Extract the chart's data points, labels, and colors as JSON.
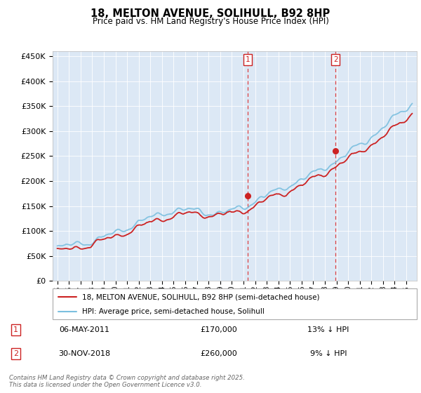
{
  "title_line1": "18, MELTON AVENUE, SOLIHULL, B92 8HP",
  "title_line2": "Price paid vs. HM Land Registry's House Price Index (HPI)",
  "ylim": [
    0,
    460000
  ],
  "yticks": [
    0,
    50000,
    100000,
    150000,
    200000,
    250000,
    300000,
    350000,
    400000,
    450000
  ],
  "ytick_labels": [
    "£0",
    "£50K",
    "£100K",
    "£150K",
    "£200K",
    "£250K",
    "£300K",
    "£350K",
    "£400K",
    "£450K"
  ],
  "hpi_color": "#7bbfdf",
  "price_color": "#cc2222",
  "m1_year": 2011.35,
  "m1_price": 170000,
  "m2_year": 2018.92,
  "m2_price": 260000,
  "annotation1": [
    "1",
    "06-MAY-2011",
    "£170,000",
    "13% ↓ HPI"
  ],
  "annotation2": [
    "2",
    "30-NOV-2018",
    "£260,000",
    "9% ↓ HPI"
  ],
  "legend_line1": "18, MELTON AVENUE, SOLIHULL, B92 8HP (semi-detached house)",
  "legend_line2": "HPI: Average price, semi-detached house, Solihull",
  "footer": "Contains HM Land Registry data © Crown copyright and database right 2025.\nThis data is licensed under the Open Government Licence v3.0.",
  "plot_bg_color": "#dce8f5",
  "xlim_min": 1994.6,
  "xlim_max": 2025.9
}
